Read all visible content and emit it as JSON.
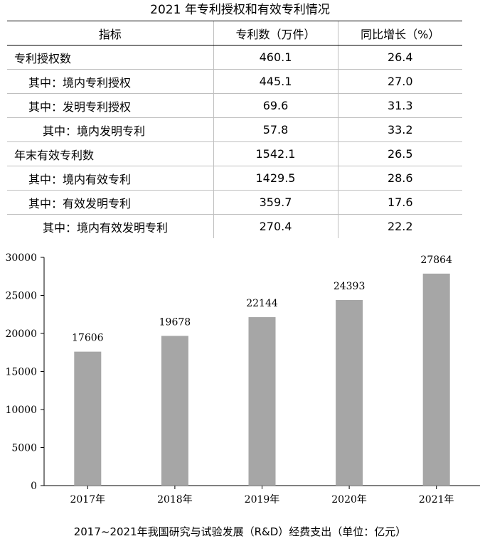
{
  "table": {
    "title": "2021 年专利授权和有效专利情况",
    "headers": [
      "指标",
      "专利数（万件）",
      "同比增长（%）"
    ],
    "rows": [
      {
        "label": "专利授权数",
        "value": "460.1",
        "growth": "26.4",
        "indent": 0
      },
      {
        "label": "其中：境内专利授权",
        "value": "445.1",
        "growth": "27.0",
        "indent": 1
      },
      {
        "label": "其中：发明专利授权",
        "value": "69.6",
        "growth": "31.3",
        "indent": 1
      },
      {
        "label": "其中：境内发明专利",
        "value": "57.8",
        "growth": "33.2",
        "indent": 2
      },
      {
        "label": "年末有效专利数",
        "value": "1542.1",
        "growth": "26.5",
        "indent": 0
      },
      {
        "label": "其中：境内有效专利",
        "value": "1429.5",
        "growth": "28.6",
        "indent": 1
      },
      {
        "label": "其中：有效发明专利",
        "value": "359.7",
        "growth": "17.6",
        "indent": 1
      },
      {
        "label": "其中：境内有效发明专利",
        "value": "270.4",
        "growth": "22.2",
        "indent": 2
      }
    ]
  },
  "chart_data": {
    "type": "bar",
    "title": "2017~2021年我国研究与试验发展（R&D）经费支出（单位：亿元）",
    "categories": [
      "2017年",
      "2018年",
      "2019年",
      "2020年",
      "2021年"
    ],
    "values": [
      17606,
      19678,
      22144,
      24393,
      27864
    ],
    "ylim": [
      0,
      30000
    ],
    "yticks": [
      0,
      5000,
      10000,
      15000,
      20000,
      25000,
      30000
    ],
    "bar_color": "#a6a6a6",
    "grid": false
  }
}
